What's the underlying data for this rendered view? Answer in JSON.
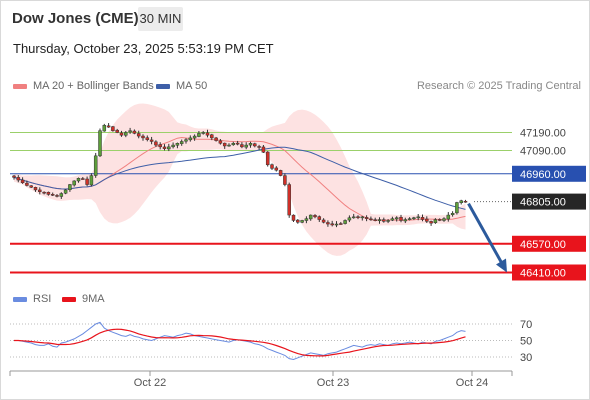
{
  "header": {
    "title": "Dow Jones (CME)",
    "interval": "30 MIN",
    "datetime": "Thursday, October 23, 2025 5:53:19 PM CET",
    "copyright": "Research © 2025 Trading Central"
  },
  "legend": {
    "ma20": "MA 20 + Bollinger Bands",
    "ma50": "MA 50",
    "rsi": "RSI",
    "rsi_ma": "9MA"
  },
  "colors": {
    "ma20": "#f08080",
    "ma50": "#3e5fa8",
    "bollinger_fill": "#fde2e2",
    "up_candle": "#5d9e3a",
    "down_candle": "#d03028",
    "resistance": "#9bd06a",
    "pivot": "#2850b0",
    "support": "#e8141c",
    "current": "#262626",
    "arrow": "#2c5a9c",
    "rsi": "#6a8ce0",
    "rsi_ma": "#e8141c"
  },
  "chart_data": [
    {
      "type": "candlestick",
      "title": "Dow Jones (CME)",
      "x_ticks": [
        "Oct 22",
        "Oct 23",
        "Oct 24"
      ],
      "ylim": [
        46350,
        47450
      ],
      "levels": [
        {
          "value": 47190.0,
          "label": "47190.00",
          "kind": "resistance"
        },
        {
          "value": 47090.0,
          "label": "47090.00",
          "kind": "resistance"
        },
        {
          "value": 46960.0,
          "label": "46960.00",
          "kind": "pivot"
        },
        {
          "value": 46805.0,
          "label": "46805.00",
          "kind": "current"
        },
        {
          "value": 46570.0,
          "label": "46570.00",
          "kind": "support"
        },
        {
          "value": 46410.0,
          "label": "46410.00",
          "kind": "support"
        }
      ],
      "close": [
        46940,
        46925,
        46910,
        46895,
        46885,
        46870,
        46860,
        46855,
        46845,
        46840,
        46835,
        46850,
        46870,
        46900,
        46920,
        46935,
        46930,
        46900,
        46950,
        47060,
        47200,
        47230,
        47220,
        47200,
        47190,
        47175,
        47190,
        47200,
        47185,
        47170,
        47160,
        47150,
        47140,
        47120,
        47110,
        47100,
        47110,
        47120,
        47130,
        47140,
        47150,
        47160,
        47170,
        47185,
        47190,
        47175,
        47160,
        47145,
        47130,
        47115,
        47120,
        47130,
        47125,
        47110,
        47120,
        47130,
        47115,
        47110,
        47080,
        47010,
        46990,
        46980,
        46950,
        46900,
        46730,
        46700,
        46690,
        46700,
        46710,
        46730,
        46720,
        46705,
        46690,
        46680,
        46675,
        46680,
        46680,
        46700,
        46715,
        46720,
        46715,
        46720,
        46710,
        46705,
        46700,
        46705,
        46695,
        46700,
        46710,
        46715,
        46700,
        46705,
        46710,
        46715,
        46720,
        46705,
        46695,
        46685,
        46705,
        46700,
        46710,
        46730,
        46740,
        46800,
        46810,
        46805
      ],
      "rsi": {
        "levels": [
          70,
          50,
          30
        ],
        "ylim": [
          20,
          80
        ],
        "values": [
          50,
          50,
          49,
          48,
          47,
          45,
          44,
          44,
          46,
          43,
          42,
          47,
          48,
          50,
          52,
          55,
          58,
          62,
          66,
          70,
          72,
          65,
          62,
          60,
          58,
          56,
          55,
          57,
          55,
          54,
          52,
          51,
          50,
          52,
          54,
          56,
          55,
          54,
          56,
          57,
          59,
          58,
          56,
          55,
          54,
          53,
          52,
          51,
          50,
          49,
          48,
          50,
          51,
          50,
          49,
          48,
          46,
          45,
          43,
          40,
          38,
          36,
          34,
          32,
          28,
          27,
          29,
          31,
          33,
          35,
          34,
          33,
          32,
          34,
          35,
          36,
          38,
          40,
          42,
          44,
          43,
          42,
          44,
          45,
          44,
          46,
          45,
          44,
          46,
          47,
          46,
          47,
          48,
          47,
          46,
          48,
          47,
          46,
          49,
          50,
          52,
          54,
          56,
          60,
          62,
          61
        ]
      }
    }
  ]
}
